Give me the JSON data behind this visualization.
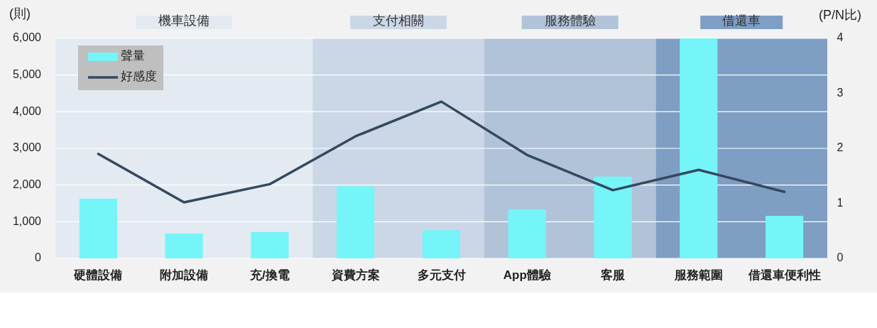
{
  "chart_data": {
    "type": "bar",
    "ylabel": "(則)",
    "y2label": "(P/N比)",
    "categories": [
      "硬體設備",
      "附加設備",
      "充/換電",
      "資費方案",
      "多元支付",
      "App體驗",
      "客服",
      "服務範圍",
      "借還車便利性"
    ],
    "series": [
      {
        "name": "聲量",
        "color": "#75f5f8",
        "values": [
          1630,
          680,
          720,
          1970,
          770,
          1340,
          2230,
          6000,
          1160
        ]
      },
      {
        "name": "好感度",
        "type": "line",
        "axis": "y2",
        "color": "#34495e",
        "values": [
          1.9,
          1.02,
          1.35,
          2.22,
          2.85,
          1.88,
          1.24,
          1.61,
          1.21
        ]
      }
    ],
    "ylim": [
      0,
      6000
    ],
    "yticks": [
      0,
      {
        "value": 1000,
        "label": "1,000"
      },
      {
        "value": 2000,
        "label": "2,000"
      },
      {
        "value": 3000,
        "label": "3,000"
      },
      {
        "value": 4000,
        "label": "4,000"
      },
      {
        "value": 5000,
        "label": "5,000"
      },
      {
        "value": 6000,
        "label": "6,000"
      }
    ],
    "y2lim": [
      0,
      4
    ],
    "y2ticks": [
      0,
      1,
      2,
      3,
      4
    ],
    "bands": [
      {
        "axis": "x",
        "from": "硬體設備",
        "to": "充/換電",
        "label": "機車設備",
        "color": "#e4eaf2"
      },
      {
        "axis": "x",
        "from": "資費方案",
        "to": "多元支付",
        "label": "支付相關",
        "color": "#cbd7e6"
      },
      {
        "axis": "x",
        "from": "App體驗",
        "to": "客服",
        "label": "服務體驗",
        "color": "#b1c3d8"
      },
      {
        "axis": "x",
        "from": "服務範圍",
        "to": "借還車便利性",
        "label": "借還車",
        "color": "#7f9ec4"
      }
    ],
    "grid": "y",
    "legend": "top left"
  }
}
